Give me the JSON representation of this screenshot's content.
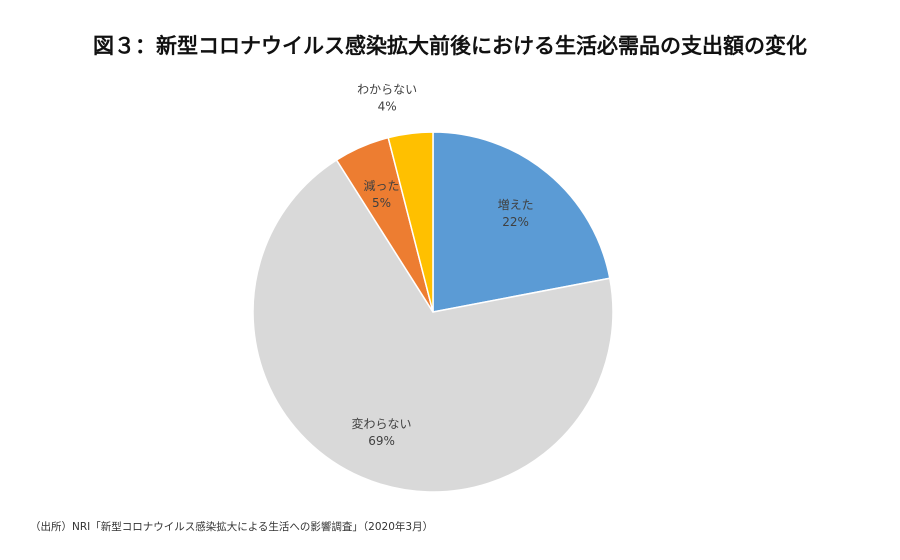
{
  "title": "図３：新型コロナウイルス感染拡大前後における生活必需品の支出額の変化",
  "source": "（出所）NRI「新型コロナウイルス感染拡大による生活への影響調査」（2020年3月）",
  "chart_data": {
    "type": "pie",
    "title": "図３：新型コロナウイルス感染拡大前後における生活必需品の支出額の変化",
    "start_angle": "12 o'clock",
    "direction": "clockwise",
    "slices": [
      {
        "name": "増えた",
        "value": 22,
        "value_label": "22%",
        "color": "#5B9BD5",
        "label_placement": "inside"
      },
      {
        "name": "変わらない",
        "value": 69,
        "value_label": "69%",
        "color": "#D9D9D9",
        "label_placement": "inside"
      },
      {
        "name": "減った",
        "value": 5,
        "value_label": "5%",
        "color": "#ED7D31",
        "label_placement": "inside"
      },
      {
        "name": "わからない",
        "value": 4,
        "value_label": "4%",
        "color": "#FFC000",
        "label_placement": "outside"
      }
    ]
  }
}
